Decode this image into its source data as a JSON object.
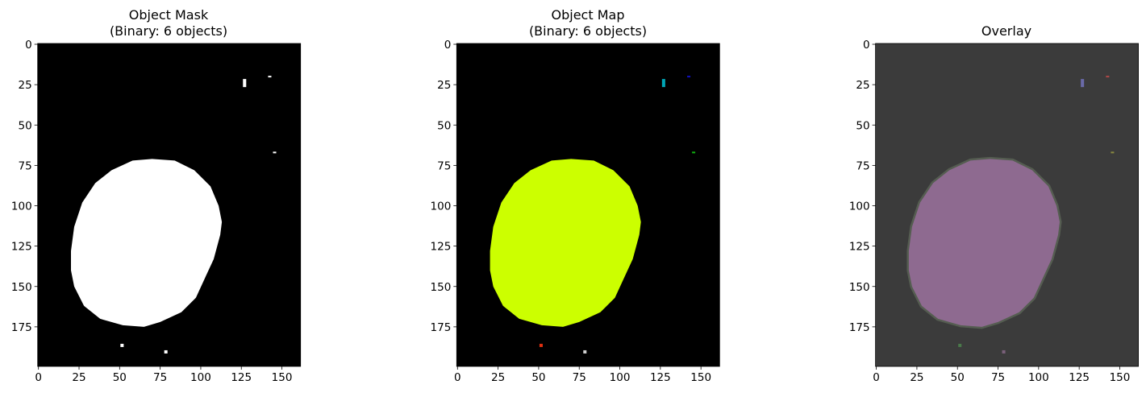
{
  "chart_data": [
    {
      "type": "image",
      "title_line1": "Object Mask",
      "title_line2": "(Binary: 6 objects)",
      "colormap": "binary",
      "background_color": "#000000",
      "object_colors": [
        "#ffffff",
        "#ffffff",
        "#ffffff",
        "#ffffff",
        "#ffffff",
        "#ffffff"
      ]
    },
    {
      "type": "image",
      "title_line1": "Object Map",
      "title_line2": "(Binary: 6 objects)",
      "colormap": "labels",
      "background_color": "#000000",
      "object_colors": [
        "#ccff00",
        "#00a5b5",
        "#1010c0",
        "#10b010",
        "#e03010",
        "#d0d0d0"
      ]
    },
    {
      "type": "image",
      "title_line1": "Overlay",
      "title_line2": "",
      "colormap": "overlay",
      "background_color": "#3b3b3b",
      "object_colors": [
        "#8e6a90",
        "#6a6aa8",
        "#b04848",
        "#8a8a40",
        "#4a7a4a",
        "#7a607a"
      ]
    }
  ],
  "image_shape": {
    "rows": 200,
    "cols": 162
  },
  "axes": {
    "x_ticks": [
      0,
      25,
      50,
      75,
      100,
      125,
      150
    ],
    "y_ticks": [
      0,
      25,
      50,
      75,
      100,
      125,
      150,
      175
    ],
    "xlim": [
      -0.5,
      161.5
    ],
    "ylim": [
      199.5,
      -0.5
    ]
  },
  "objects": [
    {
      "kind": "blob",
      "outline": [
        [
          70,
          71
        ],
        [
          58,
          72
        ],
        [
          45,
          78
        ],
        [
          35,
          86
        ],
        [
          27,
          98
        ],
        [
          22,
          113
        ],
        [
          20,
          128
        ],
        [
          20,
          140
        ],
        [
          22,
          150
        ],
        [
          28,
          162
        ],
        [
          38,
          170
        ],
        [
          52,
          174
        ],
        [
          65,
          175
        ],
        [
          75,
          172
        ],
        [
          88,
          166
        ],
        [
          97,
          157
        ],
        [
          102,
          146
        ],
        [
          108,
          133
        ],
        [
          112,
          118
        ],
        [
          113,
          110
        ],
        [
          111,
          100
        ],
        [
          106,
          88
        ],
        [
          96,
          78
        ],
        [
          84,
          72
        ]
      ]
    },
    {
      "kind": "spot",
      "x": 126,
      "y": 21.5,
      "w": 2,
      "h": 5
    },
    {
      "kind": "spot",
      "x": 141.5,
      "y": 19.5,
      "w": 2,
      "h": 1
    },
    {
      "kind": "spot",
      "x": 144.5,
      "y": 66.5,
      "w": 2,
      "h": 1
    },
    {
      "kind": "spot",
      "x": 50.5,
      "y": 185.5,
      "w": 2,
      "h": 2
    },
    {
      "kind": "spot",
      "x": 77.5,
      "y": 189.5,
      "w": 2,
      "h": 2
    }
  ]
}
